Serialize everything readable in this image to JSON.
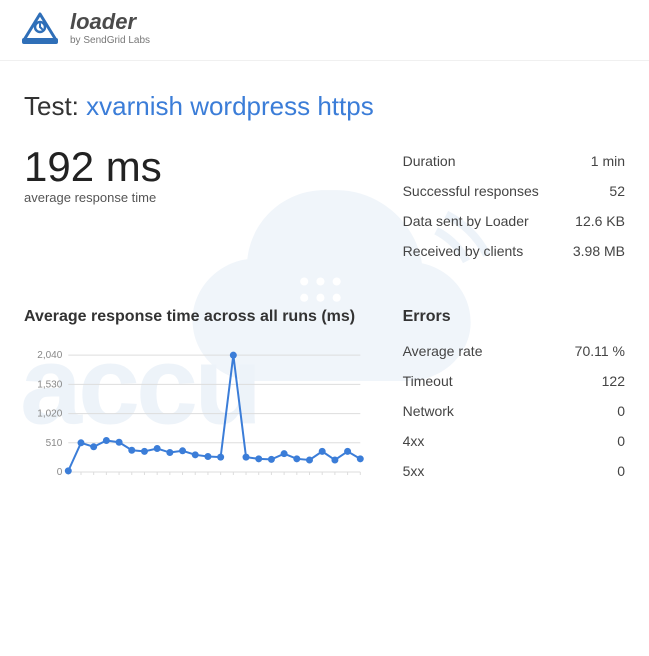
{
  "logo": {
    "word": "loader",
    "subtitle": "by SendGrid Labs",
    "icon_color": "#2f6fb8"
  },
  "test": {
    "label": "Test:",
    "name": "xvarnish wordpress https"
  },
  "headline": {
    "value": "192 ms",
    "label": "average response time"
  },
  "stats": [
    {
      "label": "Duration",
      "value": "1 min"
    },
    {
      "label": "Successful responses",
      "value": "52"
    },
    {
      "label": "Data sent by Loader",
      "value": "12.6 KB"
    },
    {
      "label": "Received by clients",
      "value": "3.98 MB"
    }
  ],
  "chart": {
    "title": "Average response time across all runs (ms)",
    "type": "line",
    "line_color": "#3b7dd8",
    "marker_color": "#3b7dd8",
    "marker_size": 3.5,
    "line_width": 2,
    "grid_color": "#dddddd",
    "label_color": "#888888",
    "label_fontsize": 10,
    "ylim": [
      0,
      2200
    ],
    "y_ticks": [
      0,
      510,
      1020,
      1530,
      2040
    ],
    "y_tick_labels": [
      "0",
      "510",
      "1,020",
      "1,530",
      "2,040"
    ],
    "x_count": 24,
    "values": [
      20,
      510,
      440,
      550,
      520,
      380,
      360,
      410,
      340,
      370,
      300,
      270,
      260,
      2040,
      260,
      230,
      220,
      320,
      230,
      210,
      360,
      210,
      360,
      230
    ]
  },
  "errors": {
    "title": "Errors",
    "rows": [
      {
        "label": "Average rate",
        "value": "70.11 %"
      },
      {
        "label": "Timeout",
        "value": "122"
      },
      {
        "label": "Network",
        "value": "0"
      },
      {
        "label": "4xx",
        "value": "0"
      },
      {
        "label": "5xx",
        "value": "0"
      }
    ]
  },
  "watermark_color": "#2f6fb8"
}
